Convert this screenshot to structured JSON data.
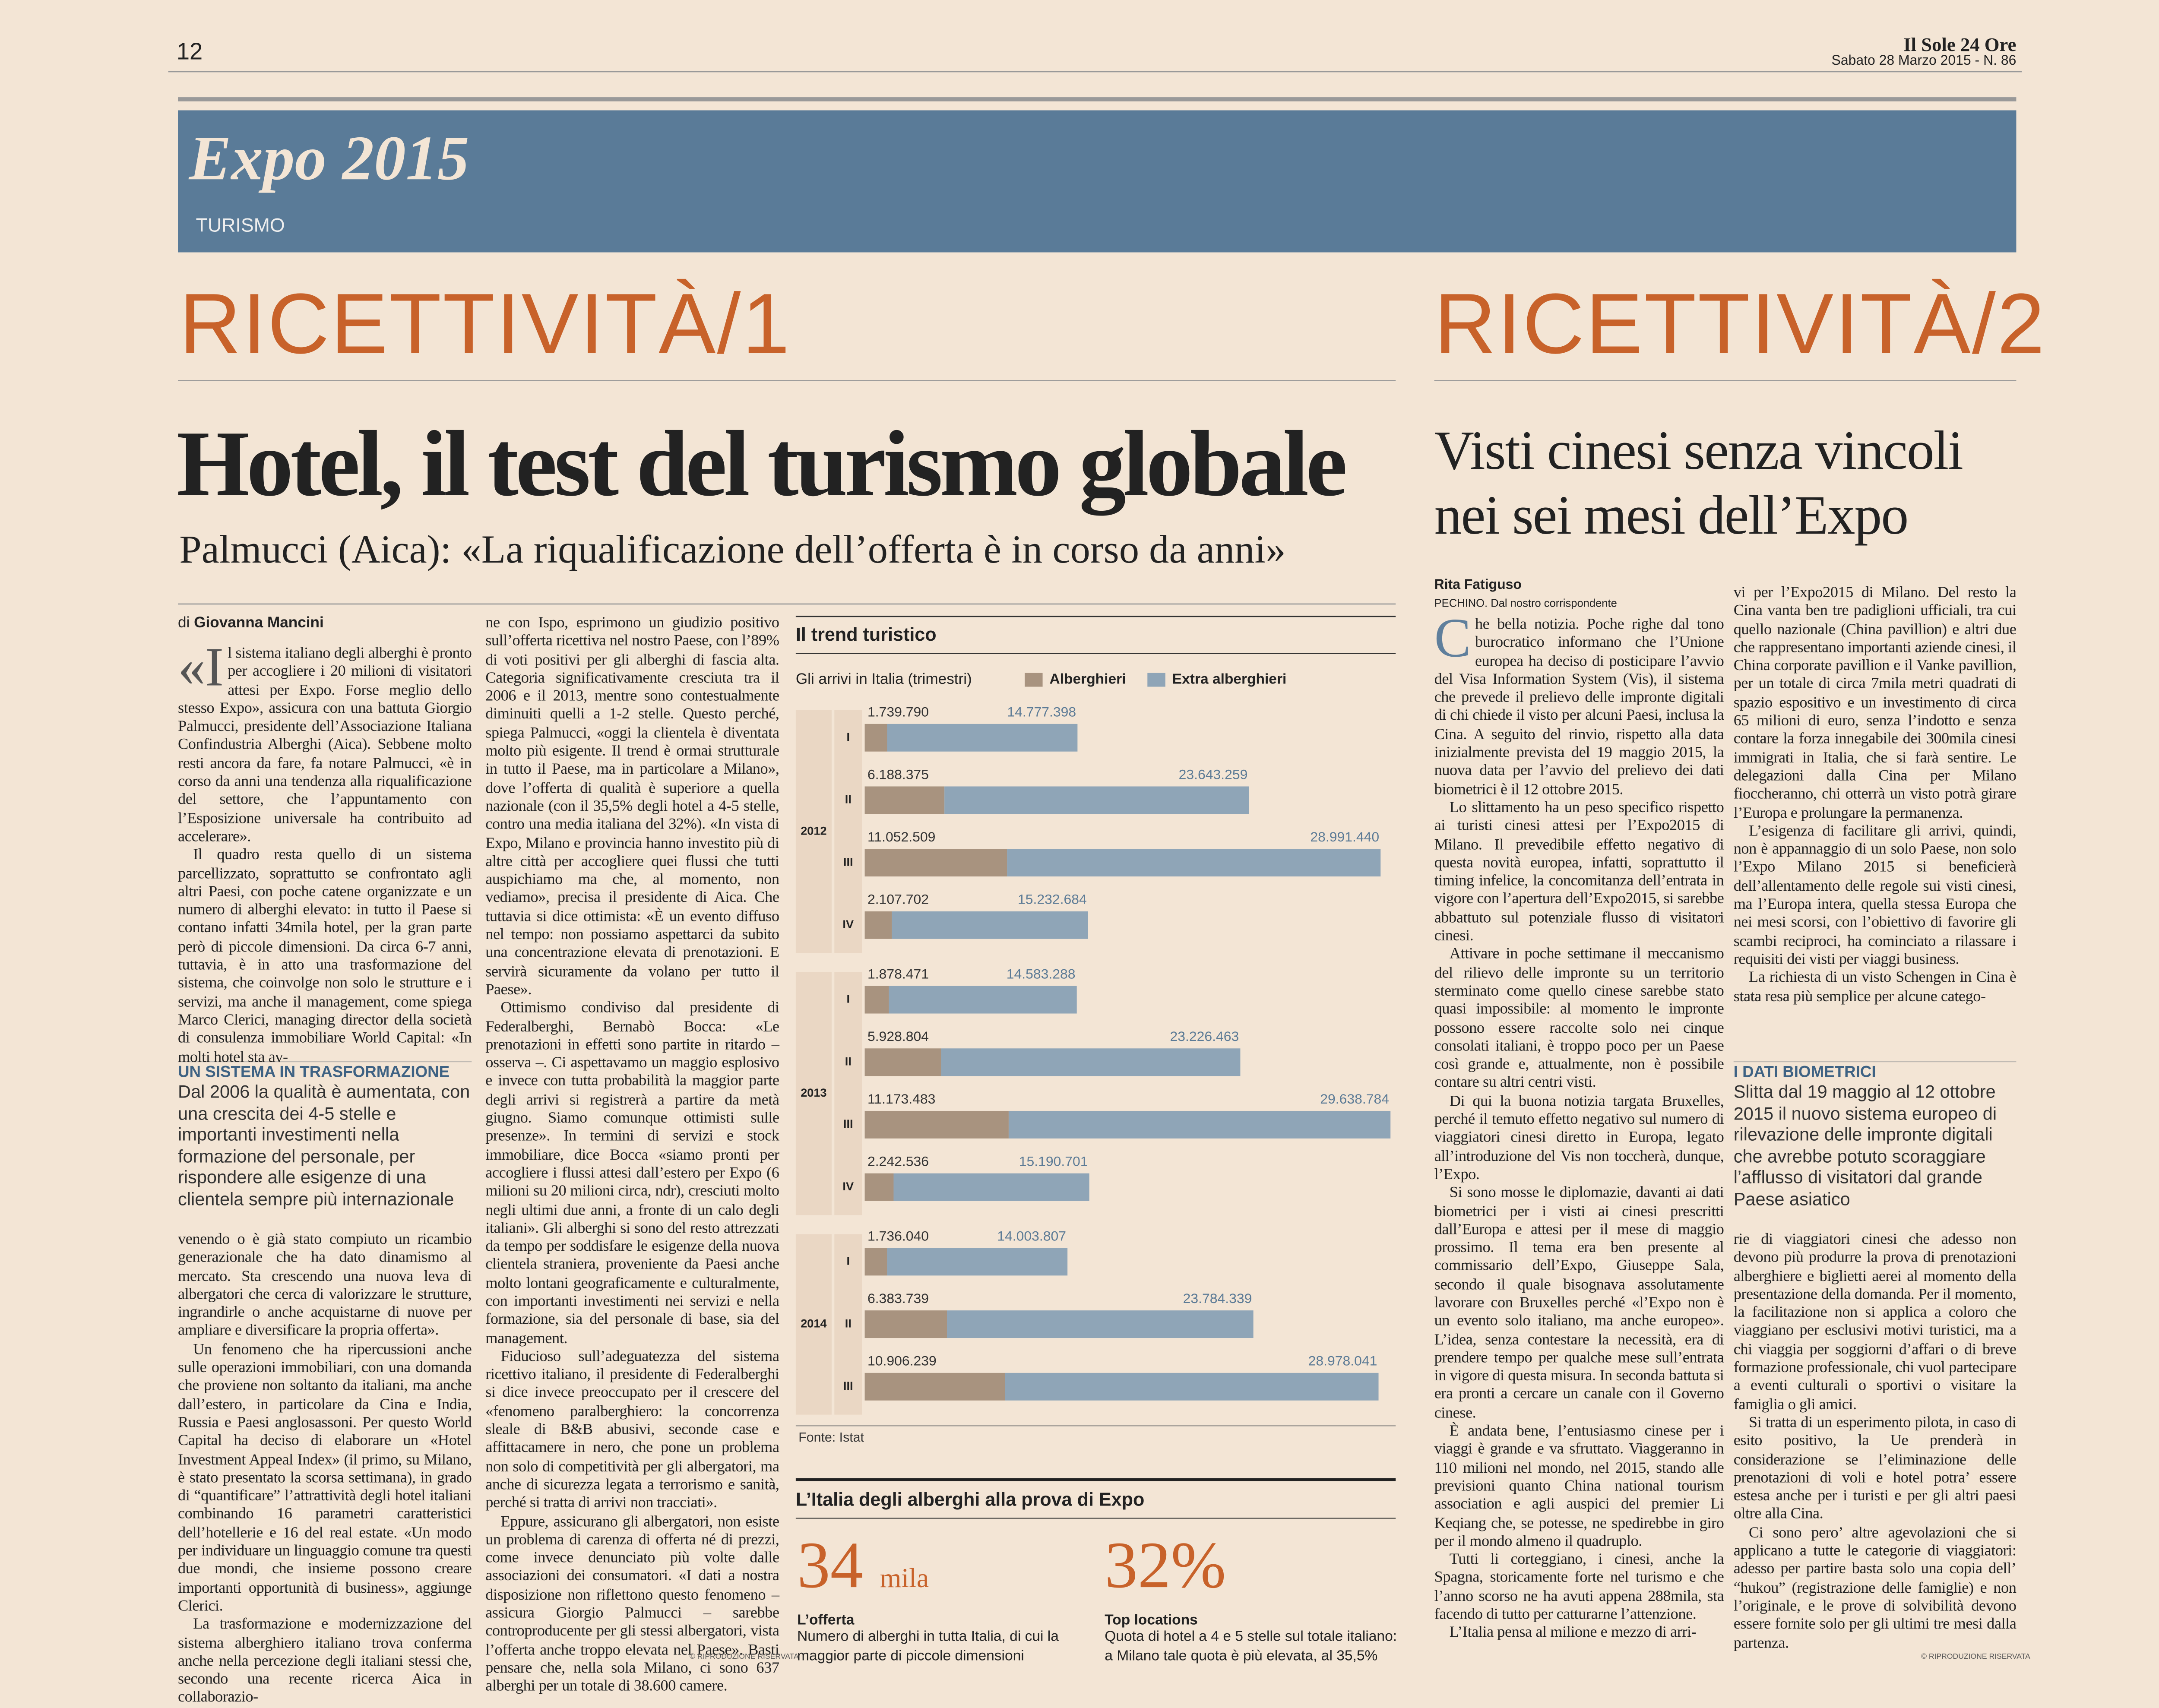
{
  "header": {
    "page_number": "12",
    "masthead": "Il Sole 24 Ore",
    "date_issue": "Sabato 28 Marzo 2015 - N. 86"
  },
  "section": {
    "title": "Expo 2015",
    "subtitle": "TURISMO"
  },
  "article_1": {
    "kicker": "RICETTIVITÀ/1",
    "headline": "Hotel, il test del turismo globale",
    "subheadline": "Palmucci (Aica): «La riqualificazione dell’offerta è in corso da anni»",
    "byline_prefix": "di",
    "author": "Giovanna Mancini",
    "columns": [
      [
        "«Il sistema italiano degli alberghi è pronto per accogliere i 20 milioni di visitatori attesi per Expo. Forse meglio dello stesso Expo», assicura con una battuta Giorgio Palmucci, presidente dell’Associazione Italiana Confindustria Alberghi (Aica). Sebbene molto resti ancora da fare, fa notare Palmucci, «è in corso da anni una tendenza alla riqualificazione del settore, che l’appuntamento con l’Esposizione universale ha contribuito ad accelerare».",
        "Il quadro resta quello di un sistema parcellizzato, soprattutto se confrontato agli altri Paesi, con poche catene organizzate e un numero di alberghi elevato: in tutto il Paese si contano infatti 34mila hotel, per la gran parte però di piccole dimensioni. Da circa 6-7 anni, tuttavia, è in atto una trasformazione del sistema, che coinvolge non solo le strutture e i servizi, ma anche il management, come spiega Marco Clerici, managing director della società di consulenza immobiliare World Capital: «In molti hotel sta av-"
      ],
      [
        "venendo o è già stato compiuto un ricambio generazionale che ha dato dinamismo al mercato. Sta crescendo una nuova leva di albergatori che cerca di valorizzare le strutture, ingrandirle o anche acquistarne di nuove per ampliare e diversificare la propria offerta».",
        "Un fenomeno che ha ripercussioni anche sulle operazioni immobiliari, con una domanda che proviene non soltanto da italiani, ma anche dall’estero, in particolare da Cina e India, Russia e Paesi anglosassoni. Per questo World Capital ha deciso di elaborare un «Hotel Investment Appeal Index» (il primo, su Milano, è stato presentato la scorsa settimana), in grado di “quantificare” l’attrattività degli hotel italiani combinando 16 parametri caratteristici dell’hotellerie e 16 del real estate. «Un modo per individuare un linguaggio comune tra questi due mondi, che insieme possono creare importanti opportunità di business», aggiunge Clerici.",
        "La trasformazione e modernizzazione del sistema alberghiero italiano trova conferma anche nella percezione degli italiani stessi che, secondo una recente ricerca Aica in collaborazio-"
      ],
      [
        "ne con Ispo, esprimono un giudizio positivo sull’offerta ricettiva nel nostro Paese, con l’89% di voti positivi per gli alberghi di fascia alta. Categoria significativamente cresciuta tra il 2006 e il 2013, mentre sono contestualmente diminuiti quelli a 1-2 stelle. Questo perché, spiega Palmucci, «oggi la clientela è diventata molto più esigente. Il trend è ormai strutturale in tutto il Paese, ma in particolare a Milano», dove l’offerta di qualità è superiore a quella nazionale (con il 35,5% degli hotel a 4-5 stelle, contro una media italiana del 32%). «In vista di Expo, Milano e provincia hanno investito più di altre città per accogliere quei flussi che tutti auspichiamo ma che, al momento, non vediamo», precisa il presidente di Aica. Che tuttavia si dice ottimista: «È un evento diffuso nel tempo: non possiamo aspettarci da subito una concentrazione elevata di prenotazioni. E servirà sicuramente da volano per tutto il Paese».",
        "Ottimismo condiviso dal presidente di Federalberghi, Bernabò Bocca: «Le prenotazioni in effetti sono partite in ritardo – osserva –. Ci aspettavamo un maggio esplosivo e invece con tutta probabilità la maggior parte degli arrivi si registrerà a partire da metà giugno. Siamo comunque ottimisti sulle presenze». In termini di servizi e stock immobiliare, dice Bocca «siamo pronti per accogliere i flussi attesi dall’estero per Expo (6 milioni su 20 milioni circa, ndr), cresciuti molto negli ultimi due anni, a fronte di un calo degli italiani». Gli alberghi si sono del resto attrezzati da tempo per soddisfare le esigenze della nuova clientela straniera, proveniente da Paesi anche molto lontani geograficamente e culturalmente, con importanti investimenti nei servizi e nella formazione, sia del personale di base, sia del management.",
        "Fiducioso sull’adeguatezza del sistema ricettivo italiano, il presidente di Federalberghi si dice invece preoccupato per il crescere del «fenomeno paralberghiero: la concorrenza sleale di B&B abusivi, seconde case e affittacamere in nero, che pone un problema non solo di competitività per gli albergatori, ma anche di sicurezza legata a terrorismo e sanità, perché si tratta di arrivi non tracciati».",
        "Eppure, assicurano gli albergatori, non esiste un problema di carenza di offerta né di prezzi, come invece denunciato più volte dalle associazioni dei consumatori. «I dati a nostra disposizione non riflettono questo fenomeno – assicura Giorgio Palmucci – sarebbe controproducente per gli stessi albergatori, vista l’offerta anche troppo elevata nel Paese». Basti pensare che, nella sola Milano, ci sono 637 alberghi per un totale di 38.600 camere."
      ]
    ],
    "sidebar": {
      "title": "UN SISTEMA IN TRASFORMAZIONE",
      "text": "Dal 2006 la qualità è aumentata, con una crescita dei 4-5 stelle e importanti investimenti nella formazione del personale, per rispondere alle esigenze di una clientela sempre più internazionale"
    },
    "copyright": "© RIPRODUZIONE RISERVATA"
  },
  "chart_data": {
    "type": "bar",
    "orientation": "horizontal",
    "stacked": true,
    "title": "Il trend turistico",
    "subtitle": "Gli arrivi in Italia (trimestri)",
    "groups": [
      {
        "name": "2012",
        "categories": [
          "I",
          "II",
          "III",
          "IV"
        ]
      },
      {
        "name": "2013",
        "categories": [
          "I",
          "II",
          "III",
          "IV"
        ]
      },
      {
        "name": "2014",
        "categories": [
          "I",
          "II",
          "III"
        ]
      }
    ],
    "series": [
      {
        "name": "Alberghieri",
        "color": "#a8937f",
        "values": [
          1739790,
          6188375,
          11052509,
          2107702,
          1878471,
          5928804,
          11173483,
          2242536,
          1736040,
          6383739,
          10906239
        ],
        "value_labels": [
          "1.739.790",
          "6.188.375",
          "11.052.509",
          "2.107.702",
          "1.878.471",
          "5.928.804",
          "11.173.483",
          "2.242.536",
          "1.736.040",
          "6.383.739",
          "10.906.239"
        ]
      },
      {
        "name": "Extra alberghieri",
        "color": "#8fa5b7",
        "values": [
          14777398,
          23643259,
          28991440,
          15232684,
          14583288,
          23226463,
          29638784,
          15190701,
          14003807,
          23784339,
          28978041
        ],
        "value_labels": [
          "14.777.398",
          "23.643.259",
          "28.991.440",
          "15.232.684",
          "14.583.288",
          "23.226.463",
          "29.638.784",
          "15.190.701",
          "14.003.807",
          "23.784.339",
          "28.978.041"
        ]
      }
    ],
    "xlim": [
      0,
      41000000
    ],
    "source": "Fonte: Istat"
  },
  "factbox": {
    "title": "L’Italia degli alberghi alla prova di Expo",
    "items": [
      {
        "number": "34",
        "unit": "mila",
        "label": "L’offerta",
        "text": "Numero di alberghi in tutta Italia, di cui la maggior parte di piccole dimensioni"
      },
      {
        "number": "32%",
        "label": "Top locations",
        "text": "Quota di hotel a 4 e 5 stelle sul totale italiano: a Milano tale quota è più elevata, al 35,5%"
      }
    ]
  },
  "article_2": {
    "kicker": "RICETTIVITÀ/2",
    "headline": [
      "Visti cinesi senza vincoli",
      "nei sei mesi dell’Expo"
    ],
    "author": "Rita Fatiguso",
    "dateline": "PECHINO. Dal nostro corrispondente",
    "columns": [
      [
        "Che bella notizia. Poche righe dal tono burocratico informano che l’Unione europea ha deciso di posticipare l’avvio del Visa Information System (Vis), il sistema che prevede il prelievo delle impronte digitali di chi chiede il visto per alcuni Paesi, inclusa la Cina. A seguito del rinvio, rispetto alla data inizialmente prevista del 19 maggio 2015, la nuova data per l’avvio del prelievo dei dati biometrici è il 12 ottobre 2015.",
        "Lo slittamento ha un peso specifico rispetto ai turisti cinesi attesi per l’Expo2015 di Milano. Il prevedibile effetto negativo di questa novità europea, infatti, soprattutto il timing infelice, la concomitanza dell’entrata in vigore con l’apertura dell’Expo2015, si sarebbe abbattuto sul potenziale flusso di visitatori cinesi.",
        "Attivare in poche settimane il meccanismo del rilievo delle impronte su un territorio sterminato come quello cinese sarebbe stato quasi impossibile: al momento le impronte possono essere raccolte solo nei cinque consolati italiani, è troppo poco per un Paese così grande e, attualmente, non è possibile contare su altri centri visti.",
        "Di qui la buona notizia targata Bruxelles, perché il temuto effetto negativo sul numero di viaggiatori cinesi diretto in Europa, legato all’introduzione del Vis non toccherà, dunque, l’Expo.",
        "Si sono mosse le diplomazie, davanti ai dati biometrici per i visti ai cinesi prescritti dall’Europa e attesi per il mese di maggio prossimo. Il tema era ben presente al commissario dell’Expo, Giuseppe Sala, secondo il quale bisognava assolutamente lavorare con Bruxelles perché «l’Expo non è un evento solo italiano, ma anche europeo». L’idea, senza contestare la necessità, era di prendere tempo per qualche mese sull’entrata in vigore di questa misura. In seconda battuta si era pronti a cercare un canale con il Governo cinese.",
        "È andata bene, l’entusiasmo cinese per i viaggi è grande e va sfruttato. Viaggeranno in 110 milioni nel mondo, nel 2015, stando alle previsioni quanto China national tourism association e agli auspici del premier Li Keqiang che, se potesse, ne spedirebbe in giro per il mondo almeno il quadruplo.",
        "Tutti li corteggiano, i cinesi, anche la Spagna, storicamente forte nel turismo e che l’anno scorso ne ha avuti appena 288mila, sta facendo di tutto per catturarne l’attenzione.",
        "L’Italia pensa al milione e mezzo di arri-"
      ],
      [
        "vi per l’Expo2015 di Milano. Del resto la Cina vanta ben tre padiglioni ufficiali, tra cui quello nazionale (China pavillion) e altri due che rappresentano importanti aziende cinesi, il China corporate pavillion e il Vanke pavillion, per un totale di circa 7mila metri quadrati di spazio espositivo e un investimento di circa 65 milioni di euro, senza l’indotto e senza contare la forza innegabile dei 300mila cinesi immigrati in Italia, che si farà sentire. Le delegazioni dalla Cina per Milano fioccheranno, chi otterrà un visto potrà girare l’Europa e prolungare la permanenza.",
        "L’esigenza di facilitare gli arrivi, quindi, non è appannaggio di un solo Paese, non solo l’Expo Milano 2015 si beneficierà dell’allentamento delle regole sui visti cinesi, ma l’Europa intera, quella stessa Europa che nei mesi scorsi, con l’obiettivo di favorire gli scambi reciproci, ha cominciato a rilassare i requisiti dei visti per viaggi business.",
        "La richiesta di un visto Schengen in Cina è stata resa più semplice per alcune catego-"
      ],
      [
        "rie di viaggiatori cinesi che adesso non devono più produrre la prova di prenotazioni alberghiere e biglietti aerei al momento della presentazione della domanda. Per il momento, la facilitazione non si applica a coloro che viaggiano per esclusivi motivi turistici, ma a chi viaggia per soggiorni d’affari o di breve formazione professionale, chi vuol partecipare a eventi culturali o sportivi o visitare la famiglia o gli amici.",
        "Si tratta di un esperimento pilota, in caso di esito positivo, la Ue prenderà in considerazione se l’eliminazione delle prenotazioni di voli e hotel potra’ essere estesa anche per i turisti e per gli altri paesi oltre alla Cina.",
        "Ci sono pero’ altre agevolazioni che si applicano a tutte le categorie di viaggiatori: adesso per partire basta solo una copia dell’ “hukou” (registrazione delle famiglie) e non l’originale, e le prove di solvibilità devono essere fornite solo per gli ultimi tre mesi dalla partenza."
      ]
    ],
    "sidebar": {
      "title": "I DATI BIOMETRICI",
      "text": "Slitta dal 19 maggio al 12 ottobre 2015 il nuovo sistema europeo di rilevazione delle impronte digitali che avrebbe potuto scoraggiare l’afflusso di visitatori dal grande Paese asiatico"
    },
    "copyright": "© RIPRODUZIONE RISERVATA"
  }
}
